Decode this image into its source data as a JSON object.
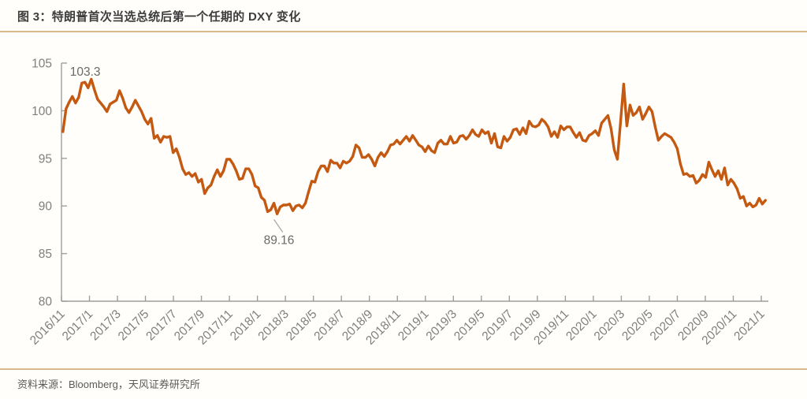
{
  "figure": {
    "title": "图 3：特朗普首次当选总统后第一个任期的 DXY 变化",
    "source": "资料来源：Bloomberg，天风证券研究所"
  },
  "chart_data": {
    "type": "line",
    "title": "特朗普首次当选总统后第一个任期的 DXY 变化",
    "series_name": "DXY",
    "line_color": "#C45911",
    "axis_color": "#9e9e9e",
    "tick_label_color": "#7f7f7f",
    "annotation_color": "#6a6a6a",
    "grid": false,
    "legend": false,
    "ylim": [
      80,
      105
    ],
    "y_ticks": [
      105,
      100,
      95,
      90,
      85,
      80
    ],
    "x_tick_labels": [
      "2016/11",
      "2017/1",
      "2017/3",
      "2017/5",
      "2017/7",
      "2017/9",
      "2017/11",
      "2018/1",
      "2018/3",
      "2018/5",
      "2018/7",
      "2018/9",
      "2018/11",
      "2019/1",
      "2019/3",
      "2019/5",
      "2019/7",
      "2019/9",
      "2019/11",
      "2020/1",
      "2020/3",
      "2020/5",
      "2020/7",
      "2020/9",
      "2020/11",
      "2021/1"
    ],
    "x_months_per_tick": 2,
    "x_month_range": [
      0.1,
      50.3
    ],
    "annotations": [
      {
        "text": "103.3",
        "type": "max",
        "at": "2017/1"
      },
      {
        "text": "89.16",
        "type": "min",
        "at": "2018/2"
      }
    ],
    "values": [
      97.8,
      100.2,
      100.9,
      101.5,
      100.8,
      101.4,
      102.9,
      103.0,
      102.4,
      103.3,
      102.2,
      101.2,
      100.8,
      100.4,
      99.9,
      100.7,
      100.9,
      101.1,
      102.1,
      101.3,
      100.3,
      99.8,
      100.4,
      101.1,
      100.5,
      99.9,
      99.1,
      98.6,
      99.2,
      97.1,
      97.4,
      96.7,
      97.3,
      97.2,
      97.3,
      95.6,
      96.0,
      95.1,
      93.9,
      93.3,
      93.5,
      93.1,
      93.4,
      92.5,
      92.8,
      91.3,
      91.9,
      92.2,
      93.1,
      93.8,
      93.1,
      93.7,
      94.9,
      94.9,
      94.4,
      93.7,
      92.8,
      92.9,
      93.9,
      93.9,
      93.3,
      92.1,
      91.9,
      90.9,
      90.6,
      89.4,
      89.6,
      90.3,
      89.16,
      89.9,
      90.1,
      90.1,
      90.2,
      89.5,
      90.0,
      90.1,
      89.8,
      90.3,
      91.5,
      92.6,
      92.5,
      93.6,
      94.2,
      94.2,
      93.6,
      94.8,
      94.5,
      94.5,
      94.0,
      94.7,
      94.5,
      94.7,
      95.2,
      96.4,
      96.1,
      95.1,
      95.1,
      95.4,
      94.9,
      94.2,
      95.1,
      95.6,
      95.2,
      95.7,
      96.4,
      96.5,
      96.9,
      96.5,
      96.9,
      97.3,
      96.8,
      97.4,
      96.9,
      96.4,
      96.2,
      95.7,
      96.3,
      95.8,
      95.6,
      96.6,
      96.9,
      96.5,
      96.5,
      97.3,
      96.6,
      96.7,
      97.3,
      97.4,
      97.0,
      97.4,
      98.0,
      97.5,
      97.3,
      98.0,
      97.6,
      97.8,
      96.6,
      97.6,
      96.2,
      96.1,
      97.3,
      96.8,
      97.2,
      98.0,
      98.1,
      97.5,
      98.2,
      97.6,
      98.9,
      98.4,
      98.3,
      98.5,
      99.1,
      98.8,
      98.3,
      97.3,
      97.8,
      97.2,
      98.4,
      98.0,
      98.3,
      98.3,
      97.7,
      97.2,
      97.7,
      96.9,
      96.8,
      97.4,
      97.6,
      97.9,
      97.4,
      98.7,
      99.1,
      99.5,
      98.1,
      95.9,
      94.9,
      98.8,
      102.8,
      98.4,
      100.6,
      99.5,
      99.8,
      100.4,
      99.1,
      99.7,
      100.4,
      99.9,
      98.3,
      96.9,
      97.3,
      97.6,
      97.4,
      97.2,
      96.7,
      96.0,
      94.4,
      93.3,
      93.4,
      93.1,
      93.2,
      92.4,
      92.7,
      93.3,
      93.0,
      94.6,
      93.8,
      93.1,
      93.7,
      92.8,
      94.0,
      92.2,
      92.8,
      92.4,
      91.8,
      90.8,
      91.0,
      90.0,
      90.3,
      89.9,
      90.1,
      90.8,
      90.2,
      90.6
    ]
  }
}
